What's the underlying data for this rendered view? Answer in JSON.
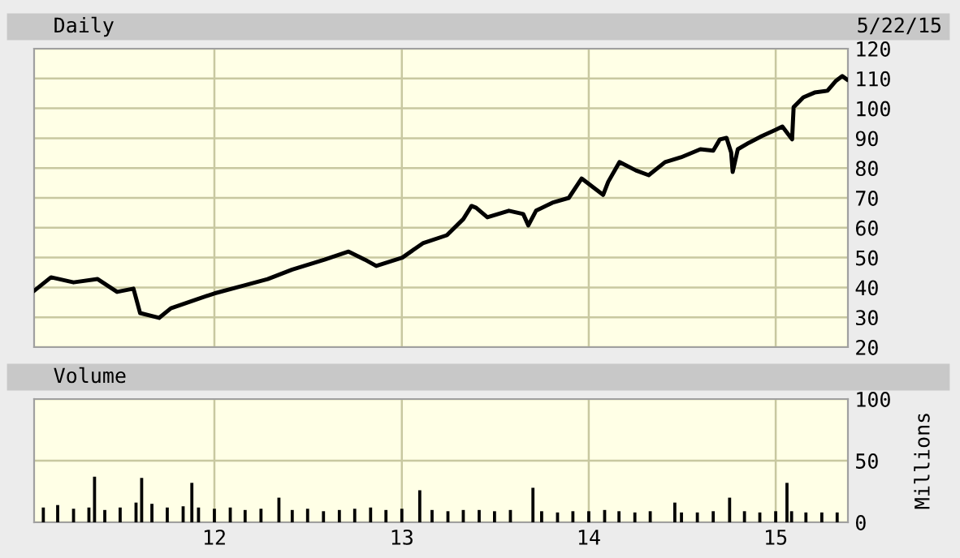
{
  "chart_data": [
    {
      "type": "line",
      "title": "Daily",
      "annotations": [
        "5/22/15"
      ],
      "xlim": [
        "2011-01-14",
        "2015-05-22"
      ],
      "xticks": [
        {
          "value": "2012-01-01",
          "label": null
        },
        {
          "value": "2013-01-01",
          "label": null
        },
        {
          "value": "2014-01-01",
          "label": null
        },
        {
          "value": "2015-01-01",
          "label": null
        }
      ],
      "ylim": [
        20,
        120
      ],
      "yticks": [
        20,
        30,
        40,
        50,
        60,
        70,
        80,
        90,
        100,
        110,
        120
      ],
      "grid": true,
      "tick_labels": "y",
      "series": [
        {
          "color": "#000000",
          "x": [
            "2011-01-15",
            "2011-02-16",
            "2011-04-01",
            "2011-05-18",
            "2011-06-25",
            "2011-07-27",
            "2011-08-09",
            "2011-09-15",
            "2011-10-08",
            "2011-11-24",
            "2012-01-01",
            "2012-02-27",
            "2012-04-14",
            "2012-06-01",
            "2012-08-03",
            "2012-09-19",
            "2012-10-21",
            "2012-11-12",
            "2013-01-02",
            "2013-02-11",
            "2013-03-30",
            "2013-05-01",
            "2013-05-17",
            "2013-05-26",
            "2013-06-17",
            "2013-07-29",
            "2013-08-26",
            "2013-09-05",
            "2013-09-20",
            "2013-10-22",
            "2013-11-23",
            "2013-12-18",
            "2014-01-29",
            "2014-02-08",
            "2014-03-02",
            "2014-04-03",
            "2014-04-28",
            "2014-05-30",
            "2014-06-30",
            "2014-08-07",
            "2014-09-01",
            "2014-09-14",
            "2014-09-27",
            "2014-10-06",
            "2014-10-09",
            "2014-10-19",
            "2014-11-10",
            "2014-12-05",
            "2015-01-01",
            "2015-01-14",
            "2015-01-26",
            "2015-02-02",
            "2015-02-05",
            "2015-02-24",
            "2015-03-18",
            "2015-04-12",
            "2015-04-28",
            "2015-05-11",
            "2015-05-20"
          ],
          "values": [
            39,
            43.4,
            41.7,
            42.8,
            38.5,
            39.6,
            31.4,
            29.8,
            33,
            35.8,
            38,
            40.6,
            42.8,
            46,
            49.3,
            52,
            49.3,
            47.2,
            50,
            54.8,
            57.5,
            62.9,
            67.3,
            66.7,
            63.5,
            65.7,
            64.6,
            60.8,
            65.7,
            68.4,
            70,
            76.5,
            71,
            75.4,
            82,
            79.2,
            77.6,
            82,
            83.6,
            86.3,
            85.8,
            89.6,
            90.1,
            85.2,
            78.7,
            86.3,
            88.5,
            90.7,
            92.8,
            93.9,
            91.2,
            89.6,
            100.4,
            103.7,
            105.3,
            105.9,
            109.1,
            110.8,
            109.7
          ]
        }
      ]
    },
    {
      "type": "bar",
      "title": "Volume",
      "ylabel": "Millions",
      "xlim": [
        "2011-01-14",
        "2015-05-22"
      ],
      "xticks": [
        {
          "value": "2012-01-01",
          "label": "12"
        },
        {
          "value": "2013-01-01",
          "label": "13"
        },
        {
          "value": "2014-01-01",
          "label": "14"
        },
        {
          "value": "2015-01-01",
          "label": "15"
        }
      ],
      "ylim": [
        0,
        100
      ],
      "yticks": [
        0,
        50,
        100
      ],
      "grid": true,
      "series": [
        {
          "color": "#000000",
          "x": [
            "2011-02-01",
            "2011-03-01",
            "2011-04-01",
            "2011-05-01",
            "2011-05-12",
            "2011-06-01",
            "2011-07-01",
            "2011-08-01",
            "2011-08-12",
            "2011-09-01",
            "2011-10-01",
            "2011-11-01",
            "2011-11-18",
            "2011-12-01",
            "2012-01-01",
            "2012-02-01",
            "2012-03-01",
            "2012-04-01",
            "2012-05-06",
            "2012-06-01",
            "2012-07-01",
            "2012-08-01",
            "2012-09-01",
            "2012-10-01",
            "2012-11-01",
            "2012-12-01",
            "2013-01-01",
            "2013-02-05",
            "2013-03-01",
            "2013-04-01",
            "2013-05-01",
            "2013-06-01",
            "2013-07-01",
            "2013-08-01",
            "2013-09-14",
            "2013-10-01",
            "2013-11-01",
            "2013-12-01",
            "2014-01-01",
            "2014-02-01",
            "2014-03-01",
            "2014-04-01",
            "2014-05-01",
            "2014-06-18",
            "2014-07-01",
            "2014-08-01",
            "2014-09-01",
            "2014-10-03",
            "2014-11-01",
            "2014-12-01",
            "2015-01-01",
            "2015-01-23",
            "2015-02-01",
            "2015-03-01",
            "2015-04-01",
            "2015-05-01"
          ],
          "values": [
            12,
            14,
            11,
            12,
            37,
            10,
            12,
            16,
            36,
            15,
            12,
            13,
            32,
            12,
            11,
            12,
            10,
            11,
            20,
            10,
            11,
            9,
            10,
            11,
            12,
            10,
            11,
            26,
            10,
            9,
            10,
            10,
            9,
            10,
            28,
            9,
            8,
            9,
            9,
            10,
            9,
            8,
            9,
            16,
            8,
            8,
            9,
            20,
            9,
            8,
            9,
            32,
            9,
            8,
            8,
            8
          ]
        }
      ]
    }
  ]
}
